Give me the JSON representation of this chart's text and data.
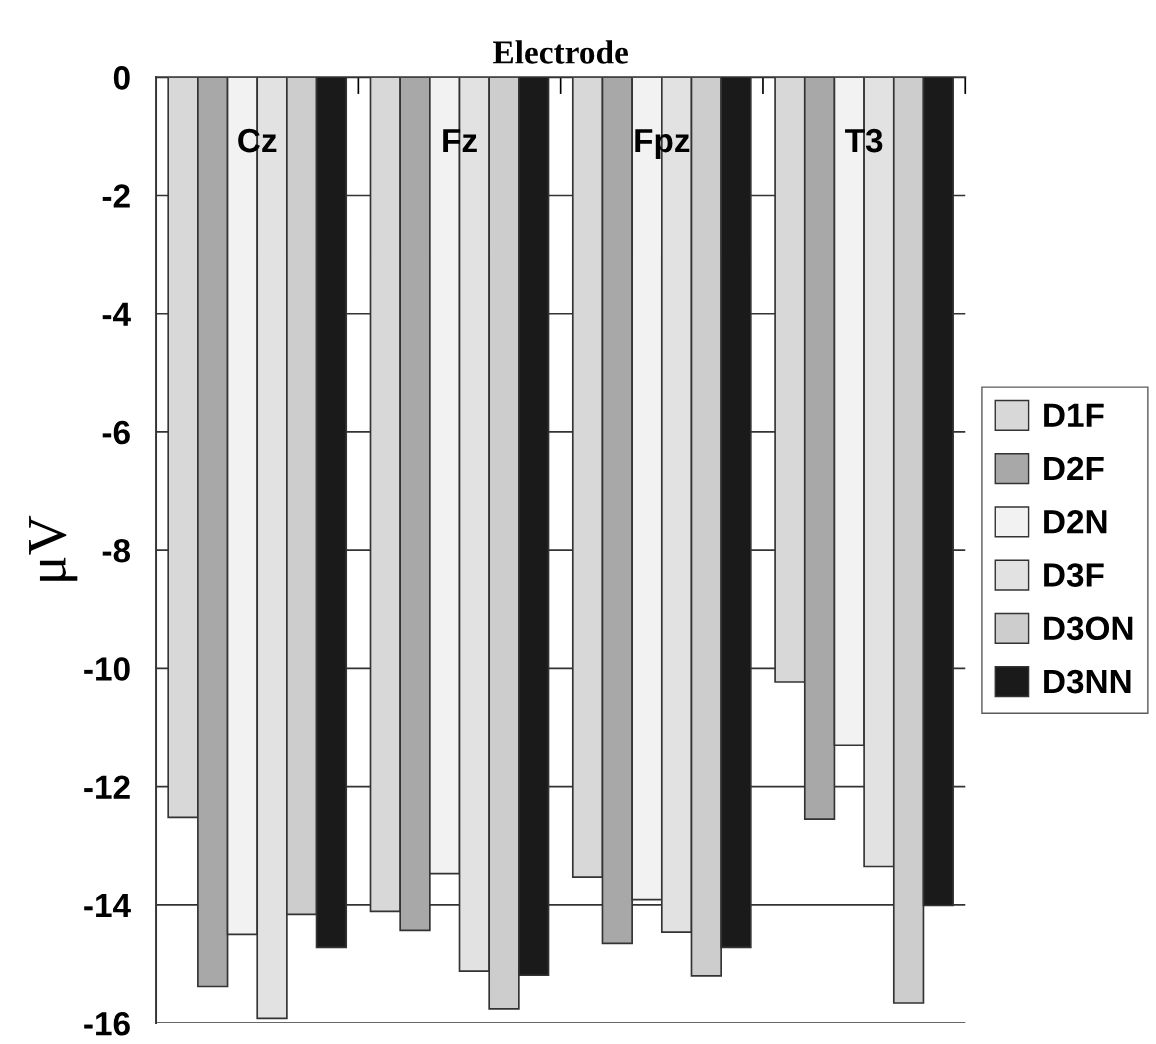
{
  "chart_data": {
    "type": "bar",
    "title": "Electrode",
    "ylabel": "μV",
    "categories": [
      "Cz",
      "Fz",
      "Fpz",
      "T3"
    ],
    "series": [
      {
        "name": "D1F",
        "color": "#d8d8d8",
        "values": [
          -12.52,
          -14.11,
          -13.53,
          -10.23
        ]
      },
      {
        "name": "D2F",
        "color": "#a8a8a8",
        "values": [
          -15.38,
          -14.43,
          -14.65,
          -12.55
        ]
      },
      {
        "name": "D2N",
        "color": "#f2f2f2",
        "values": [
          -14.5,
          -13.47,
          -13.91,
          -11.3
        ]
      },
      {
        "name": "D3F",
        "color": "#e2e2e2",
        "values": [
          -15.92,
          -15.12,
          -14.46,
          -13.35
        ]
      },
      {
        "name": "D3ON",
        "color": "#cdcdcd",
        "values": [
          -14.16,
          -15.76,
          -15.2,
          -15.66
        ]
      },
      {
        "name": "D3NN",
        "color": "#1a1a1a",
        "values": [
          -14.72,
          -15.19,
          -14.72,
          -14.01
        ]
      }
    ],
    "ylim": [
      -16,
      0
    ],
    "yticks": [
      -16,
      -14,
      -12,
      -10,
      -8,
      -6,
      -4,
      -2,
      0
    ],
    "grid": "y",
    "legend": "right"
  }
}
